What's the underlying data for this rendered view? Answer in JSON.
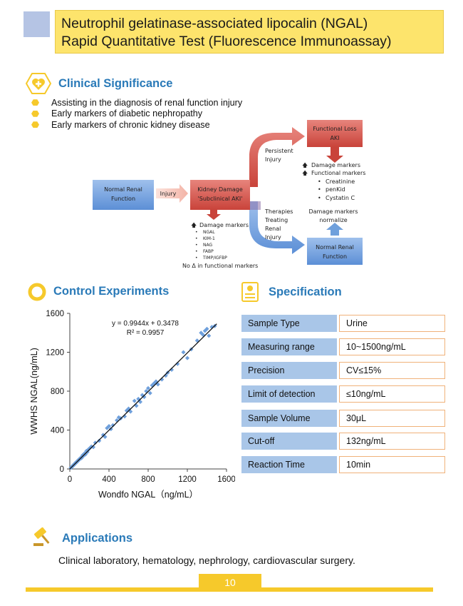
{
  "header": {
    "title_line1": "Neutrophil gelatinase-associated lipocalin (NGAL)",
    "title_line2": "Rapid Quantitative Test (Fluorescence Immunoassay)"
  },
  "clinical": {
    "title": "Clinical Significance",
    "icon": "heart-plus-icon",
    "bullets": [
      "Assisting in the diagnosis of renal function injury",
      "Early markers of diabetic nephropathy",
      "Early markers of chronic kidney disease"
    ]
  },
  "diagram": {
    "normal_renal": [
      "Normal Renal",
      "Function"
    ],
    "injury": "Injury",
    "kidney_damage": [
      "Kidney Damage",
      "'Subclinical AKI'"
    ],
    "functional_loss": [
      "Functional Loss",
      "AKI"
    ],
    "persistent": [
      "Persistent",
      "Injury"
    ],
    "fl_markers": [
      "Damage markers",
      "Functional markers"
    ],
    "fl_items": [
      "Creatinine",
      "penKid",
      "Cystatin C"
    ],
    "therapies": [
      "Therapies",
      "Treating",
      "Renal",
      "Injury"
    ],
    "normalize": [
      "Damage markers",
      "normalize"
    ],
    "normal_renal_2": [
      "Normal Renal",
      "Function"
    ],
    "kd_markers": "Damage markers",
    "kd_items": [
      "NGAL",
      "KIM-1",
      "NAG",
      "FABP",
      "TIMP/IGFBP"
    ],
    "no_delta": "No Δ in functional markers"
  },
  "control": {
    "title": "Control Experiments",
    "icon": "ring-icon"
  },
  "chart_data": {
    "type": "scatter",
    "xlabel": "Wondfo NGAL（ng/mL）",
    "ylabel": "WWHS NGAL(ng/mL)",
    "xlim": [
      0,
      1600
    ],
    "ylim": [
      0,
      1600
    ],
    "x_ticks": [
      0,
      400,
      800,
      1200,
      1600
    ],
    "y_ticks": [
      0,
      400,
      800,
      1200,
      1600
    ],
    "equation": "y = 0.9944x + 0.3478",
    "r2": "R² = 0.9957",
    "trendline": {
      "slope": 0.9944,
      "intercept": 0.3478,
      "x_range": [
        0,
        1500
      ]
    },
    "points": [
      [
        10,
        12
      ],
      [
        20,
        18
      ],
      [
        30,
        35
      ],
      [
        40,
        38
      ],
      [
        50,
        55
      ],
      [
        60,
        58
      ],
      [
        70,
        75
      ],
      [
        80,
        78
      ],
      [
        90,
        95
      ],
      [
        100,
        98
      ],
      [
        110,
        115
      ],
      [
        120,
        112
      ],
      [
        130,
        140
      ],
      [
        140,
        135
      ],
      [
        150,
        160
      ],
      [
        160,
        150
      ],
      [
        170,
        185
      ],
      [
        180,
        175
      ],
      [
        190,
        200
      ],
      [
        200,
        210
      ],
      [
        220,
        230
      ],
      [
        240,
        225
      ],
      [
        260,
        270
      ],
      [
        300,
        290
      ],
      [
        340,
        350
      ],
      [
        360,
        330
      ],
      [
        380,
        420
      ],
      [
        400,
        440
      ],
      [
        420,
        410
      ],
      [
        440,
        450
      ],
      [
        480,
        500
      ],
      [
        500,
        530
      ],
      [
        520,
        520
      ],
      [
        560,
        540
      ],
      [
        580,
        600
      ],
      [
        600,
        620
      ],
      [
        620,
        590
      ],
      [
        660,
        700
      ],
      [
        680,
        650
      ],
      [
        700,
        720
      ],
      [
        720,
        690
      ],
      [
        740,
        760
      ],
      [
        760,
        740
      ],
      [
        780,
        800
      ],
      [
        800,
        830
      ],
      [
        820,
        780
      ],
      [
        840,
        860
      ],
      [
        860,
        880
      ],
      [
        880,
        900
      ],
      [
        900,
        870
      ],
      [
        940,
        920
      ],
      [
        980,
        960
      ],
      [
        1000,
        990
      ],
      [
        1040,
        1020
      ],
      [
        1100,
        1080
      ],
      [
        1160,
        1200
      ],
      [
        1200,
        1140
      ],
      [
        1240,
        1230
      ],
      [
        1300,
        1320
      ],
      [
        1340,
        1400
      ],
      [
        1360,
        1380
      ],
      [
        1380,
        1420
      ],
      [
        1400,
        1440
      ],
      [
        1420,
        1370
      ],
      [
        1450,
        1460
      ],
      [
        1480,
        1470
      ]
    ]
  },
  "specification": {
    "title": "Specification",
    "icon": "document-badge-icon",
    "rows": [
      {
        "label": "Sample  Type",
        "value": "Urine"
      },
      {
        "label": "Measuring range",
        "value": "10~1500ng/mL"
      },
      {
        "label": "Precision",
        "value": "CV≤15%"
      },
      {
        "label": "Limit of detection",
        "value": "≤10ng/mL"
      },
      {
        "label": "Sample  Volume",
        "value": "30μL"
      },
      {
        "label": "Cut-off",
        "value": "132ng/mL"
      },
      {
        "label": "Reaction Time",
        "value": "10min"
      }
    ]
  },
  "applications": {
    "title": "Applications",
    "icon": "gavel-icon",
    "text": "Clinical laboratory, hematology, nephrology, cardiovascular surgery."
  },
  "footer": {
    "page_number": "10"
  },
  "colors": {
    "accent_yellow": "#f6c92b",
    "title_yellow": "#fde46c",
    "section_blue": "#2a7ab8",
    "spec_label_blue": "#a9c6e8",
    "spec_border_orange": "#f0b27a",
    "damage_red": "#d9534a",
    "renal_blue": "#6fa0dc"
  }
}
